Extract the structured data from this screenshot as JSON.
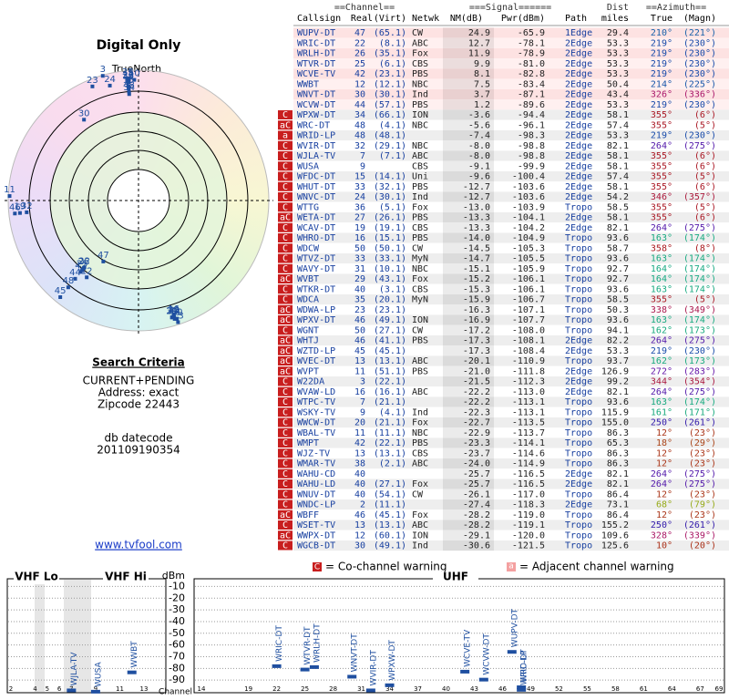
{
  "left": {
    "title": "Digital Only",
    "north": "TrueNorth",
    "criteria_title": "Search Criteria",
    "criteria": [
      "CURRENT+PENDING",
      "Address: exact",
      "Zipcode 22443"
    ],
    "datecode_label": "db datecode",
    "datecode": "201109190354",
    "link": "www.tvfool.com"
  },
  "polar": {
    "rlim": [
      80,
      -22
    ]
  },
  "table": {
    "group_headers": [
      "==Channel==",
      "===Signal======",
      "Dist",
      "==Azimuth=="
    ],
    "columns": [
      "Callsign",
      "Real",
      "(Virt)",
      "Netwk",
      "NM(dB)",
      "Pwr(dBm)",
      "Path",
      "miles",
      "True",
      "(Magn)"
    ],
    "rows": [
      {
        "callsign": "WUPV-DT",
        "real": 47,
        "virt": "(65.1)",
        "netwk": "CW",
        "nm": "24.9",
        "pwr": "-65.9",
        "path": "1Edge",
        "dist": "29.4",
        "true": "210°",
        "magn": "(221°)"
      },
      {
        "callsign": "WRIC-DT",
        "real": 22,
        "virt": "(8.1)",
        "netwk": "ABC",
        "nm": "12.7",
        "pwr": "-78.1",
        "path": "2Edge",
        "dist": "53.3",
        "true": "219°",
        "magn": "(230°)"
      },
      {
        "callsign": "WRLH-DT",
        "real": 26,
        "virt": "(35.1)",
        "netwk": "Fox",
        "nm": "11.9",
        "pwr": "-78.9",
        "path": "2Edge",
        "dist": "53.3",
        "true": "219°",
        "magn": "(230°)"
      },
      {
        "callsign": "WTVR-DT",
        "real": 25,
        "virt": "(6.1)",
        "netwk": "CBS",
        "nm": "9.9",
        "pwr": "-81.0",
        "path": "2Edge",
        "dist": "53.3",
        "true": "219°",
        "magn": "(230°)"
      },
      {
        "callsign": "WCVE-TV",
        "real": 42,
        "virt": "(23.1)",
        "netwk": "PBS",
        "nm": "8.1",
        "pwr": "-82.8",
        "path": "2Edge",
        "dist": "53.3",
        "true": "219°",
        "magn": "(230°)"
      },
      {
        "callsign": "WWBT",
        "real": 12,
        "virt": "(12.1)",
        "netwk": "NBC",
        "nm": "7.5",
        "pwr": "-83.4",
        "path": "2Edge",
        "dist": "50.4",
        "true": "214°",
        "magn": "(225°)"
      },
      {
        "callsign": "WNVT-DT",
        "real": 30,
        "virt": "(30.1)",
        "netwk": "Ind",
        "nm": "3.7",
        "pwr": "-87.1",
        "path": "2Edge",
        "dist": "43.4",
        "true": "326°",
        "magn": "(336°)"
      },
      {
        "callsign": "WCVW-DT",
        "real": 44,
        "virt": "(57.1)",
        "netwk": "PBS",
        "nm": "1.2",
        "pwr": "-89.6",
        "path": "2Edge",
        "dist": "53.3",
        "true": "219°",
        "magn": "(230°)"
      },
      {
        "warn": "C",
        "callsign": "WPXW-DT",
        "real": 34,
        "virt": "(66.1)",
        "netwk": "ION",
        "nm": "-3.6",
        "pwr": "-94.4",
        "path": "2Edge",
        "dist": "58.1",
        "true": "355°",
        "magn": "(6°)"
      },
      {
        "warn": "aC",
        "callsign": "WRC-DT",
        "real": 48,
        "virt": "(4.1)",
        "netwk": "NBC",
        "nm": "-5.6",
        "pwr": "-96.1",
        "path": "2Edge",
        "dist": "57.4",
        "true": "355°",
        "magn": "(5°)"
      },
      {
        "warn": "a",
        "callsign": "WRID-LP",
        "real": 48,
        "virt": "(48.1)",
        "nm": "-7.4",
        "pwr": "-98.3",
        "path": "2Edge",
        "dist": "53.3",
        "true": "219°",
        "magn": "(230°)"
      },
      {
        "warn": "C",
        "callsign": "WVIR-DT",
        "real": 32,
        "virt": "(29.1)",
        "netwk": "NBC",
        "nm": "-8.0",
        "pwr": "-98.8",
        "path": "2Edge",
        "dist": "82.1",
        "true": "264°",
        "magn": "(275°)"
      },
      {
        "warn": "C",
        "callsign": "WJLA-TV",
        "real": 7,
        "virt": "(7.1)",
        "netwk": "ABC",
        "nm": "-8.0",
        "pwr": "-98.8",
        "path": "2Edge",
        "dist": "58.1",
        "true": "355°",
        "magn": "(6°)"
      },
      {
        "warn": "C",
        "callsign": "WUSA",
        "real": 9,
        "netwk": "CBS",
        "nm": "-9.1",
        "pwr": "-99.9",
        "path": "2Edge",
        "dist": "58.1",
        "true": "355°",
        "magn": "(6°)"
      },
      {
        "warn": "C",
        "callsign": "WFDC-DT",
        "real": 15,
        "virt": "(14.1)",
        "netwk": "Uni",
        "nm": "-9.6",
        "pwr": "-100.4",
        "path": "2Edge",
        "dist": "57.4",
        "true": "355°",
        "magn": "(5°)"
      },
      {
        "warn": "C",
        "callsign": "WHUT-DT",
        "real": 33,
        "virt": "(32.1)",
        "netwk": "PBS",
        "nm": "-12.7",
        "pwr": "-103.6",
        "path": "2Edge",
        "dist": "58.1",
        "true": "355°",
        "magn": "(6°)"
      },
      {
        "warn": "C",
        "callsign": "WNVC-DT",
        "real": 24,
        "virt": "(30.1)",
        "netwk": "Ind",
        "nm": "-12.7",
        "pwr": "-103.6",
        "path": "2Edge",
        "dist": "54.2",
        "true": "346°",
        "magn": "(357°)"
      },
      {
        "warn": "C",
        "callsign": "WTTG",
        "real": 36,
        "virt": "(5.1)",
        "netwk": "Fox",
        "nm": "-13.0",
        "pwr": "-103.9",
        "path": "Tropo",
        "dist": "58.5",
        "true": "355°",
        "magn": "(5°)"
      },
      {
        "warn": "aC",
        "callsign": "WETA-DT",
        "real": 27,
        "virt": "(26.1)",
        "netwk": "PBS",
        "nm": "-13.3",
        "pwr": "-104.1",
        "path": "2Edge",
        "dist": "58.1",
        "true": "355°",
        "magn": "(6°)"
      },
      {
        "warn": "C",
        "callsign": "WCAV-DT",
        "real": 19,
        "virt": "(19.1)",
        "netwk": "CBS",
        "nm": "-13.3",
        "pwr": "-104.2",
        "path": "2Edge",
        "dist": "82.1",
        "true": "264°",
        "magn": "(275°)"
      },
      {
        "warn": "C",
        "callsign": "WHRO-DT",
        "real": 16,
        "virt": "(15.1)",
        "netwk": "PBS",
        "nm": "-14.0",
        "pwr": "-104.9",
        "path": "Tropo",
        "dist": "93.6",
        "true": "163°",
        "magn": "(174°)"
      },
      {
        "warn": "C",
        "callsign": "WDCW",
        "real": 50,
        "virt": "(50.1)",
        "netwk": "CW",
        "nm": "-14.5",
        "pwr": "-105.3",
        "path": "Tropo",
        "dist": "58.7",
        "true": "358°",
        "magn": "(8°)"
      },
      {
        "warn": "C",
        "callsign": "WTVZ-DT",
        "real": 33,
        "virt": "(33.1)",
        "netwk": "MyN",
        "nm": "-14.7",
        "pwr": "-105.5",
        "path": "Tropo",
        "dist": "93.6",
        "true": "163°",
        "magn": "(174°)"
      },
      {
        "warn": "C",
        "callsign": "WAVY-DT",
        "real": 31,
        "virt": "(10.1)",
        "netwk": "NBC",
        "nm": "-15.1",
        "pwr": "-105.9",
        "path": "Tropo",
        "dist": "92.7",
        "true": "164°",
        "magn": "(174°)"
      },
      {
        "warn": "aC",
        "callsign": "WVBT",
        "real": 29,
        "virt": "(43.1)",
        "netwk": "Fox",
        "nm": "-15.2",
        "pwr": "-106.1",
        "path": "Tropo",
        "dist": "92.7",
        "true": "164°",
        "magn": "(174°)"
      },
      {
        "warn": "C",
        "callsign": "WTKR-DT",
        "real": 40,
        "virt": "(3.1)",
        "netwk": "CBS",
        "nm": "-15.3",
        "pwr": "-106.1",
        "path": "Tropo",
        "dist": "93.6",
        "true": "163°",
        "magn": "(174°)"
      },
      {
        "warn": "C",
        "callsign": "WDCA",
        "real": 35,
        "virt": "(20.1)",
        "netwk": "MyN",
        "nm": "-15.9",
        "pwr": "-106.7",
        "path": "Tropo",
        "dist": "58.5",
        "true": "355°",
        "magn": "(5°)"
      },
      {
        "warn": "aC",
        "callsign": "WDWA-LP",
        "real": 23,
        "virt": "(23.1)",
        "nm": "-16.3",
        "pwr": "-107.1",
        "path": "Tropo",
        "dist": "50.3",
        "true": "338°",
        "magn": "(349°)"
      },
      {
        "warn": "aC",
        "callsign": "WPXV-DT",
        "real": 46,
        "virt": "(49.1)",
        "netwk": "ION",
        "nm": "-16.9",
        "pwr": "-107.7",
        "path": "Tropo",
        "dist": "93.6",
        "true": "163°",
        "magn": "(174°)"
      },
      {
        "warn": "C",
        "callsign": "WGNT",
        "real": 50,
        "virt": "(27.1)",
        "netwk": "CW",
        "nm": "-17.2",
        "pwr": "-108.0",
        "path": "Tropo",
        "dist": "94.1",
        "true": "162°",
        "magn": "(173°)"
      },
      {
        "warn": "aC",
        "callsign": "WHTJ",
        "real": 46,
        "virt": "(41.1)",
        "netwk": "PBS",
        "nm": "-17.3",
        "pwr": "-108.1",
        "path": "2Edge",
        "dist": "82.2",
        "true": "264°",
        "magn": "(275°)"
      },
      {
        "warn": "aC",
        "callsign": "WZTD-LP",
        "real": 45,
        "virt": "(45.1)",
        "nm": "-17.3",
        "pwr": "-108.4",
        "path": "2Edge",
        "dist": "53.3",
        "true": "219°",
        "magn": "(230°)"
      },
      {
        "warn": "aC",
        "callsign": "WVEC-DT",
        "real": 13,
        "virt": "(13.1)",
        "netwk": "ABC",
        "nm": "-20.1",
        "pwr": "-110.9",
        "path": "Tropo",
        "dist": "93.7",
        "true": "162°",
        "magn": "(173°)"
      },
      {
        "warn": "aC",
        "callsign": "WVPT",
        "real": 11,
        "virt": "(51.1)",
        "netwk": "PBS",
        "nm": "-21.0",
        "pwr": "-111.8",
        "path": "2Edge",
        "dist": "126.9",
        "true": "272°",
        "magn": "(283°)"
      },
      {
        "warn": "C",
        "callsign": "W22DA",
        "real": 3,
        "virt": "(22.1)",
        "nm": "-21.5",
        "pwr": "-112.3",
        "path": "2Edge",
        "dist": "99.2",
        "true": "344°",
        "magn": "(354°)"
      },
      {
        "warn": "C",
        "callsign": "WVAW-LD",
        "real": 16,
        "virt": "(16.1)",
        "netwk": "ABC",
        "nm": "-22.2",
        "pwr": "-113.0",
        "path": "2Edge",
        "dist": "82.1",
        "true": "264°",
        "magn": "(275°)"
      },
      {
        "warn": "C",
        "callsign": "WTPC-TV",
        "real": 7,
        "virt": "(21.1)",
        "nm": "-22.2",
        "pwr": "-113.1",
        "path": "Tropo",
        "dist": "93.6",
        "true": "163°",
        "magn": "(174°)"
      },
      {
        "warn": "C",
        "callsign": "WSKY-TV",
        "real": 9,
        "virt": "(4.1)",
        "netwk": "Ind",
        "nm": "-22.3",
        "pwr": "-113.1",
        "path": "Tropo",
        "dist": "115.9",
        "true": "161°",
        "magn": "(171°)"
      },
      {
        "warn": "C",
        "callsign": "WWCW-DT",
        "real": 20,
        "virt": "(21.1)",
        "netwk": "Fox",
        "nm": "-22.7",
        "pwr": "-113.5",
        "path": "Tropo",
        "dist": "155.0",
        "true": "250°",
        "magn": "(261°)"
      },
      {
        "warn": "C",
        "callsign": "WBAL-TV",
        "real": 11,
        "virt": "(11.1)",
        "netwk": "NBC",
        "nm": "-22.9",
        "pwr": "-113.7",
        "path": "Tropo",
        "dist": "86.3",
        "true": "12°",
        "magn": "(23°)"
      },
      {
        "warn": "C",
        "callsign": "WMPT",
        "real": 42,
        "virt": "(22.1)",
        "netwk": "PBS",
        "nm": "-23.3",
        "pwr": "-114.1",
        "path": "Tropo",
        "dist": "65.3",
        "true": "18°",
        "magn": "(29°)"
      },
      {
        "warn": "C",
        "callsign": "WJZ-TV",
        "real": 13,
        "virt": "(13.1)",
        "netwk": "CBS",
        "nm": "-23.7",
        "pwr": "-114.6",
        "path": "Tropo",
        "dist": "86.3",
        "true": "12°",
        "magn": "(23°)"
      },
      {
        "warn": "C",
        "callsign": "WMAR-TV",
        "real": 38,
        "virt": "(2.1)",
        "netwk": "ABC",
        "nm": "-24.0",
        "pwr": "-114.9",
        "path": "Tropo",
        "dist": "86.3",
        "true": "12°",
        "magn": "(23°)"
      },
      {
        "warn": "C",
        "callsign": "WAHU-CD",
        "real": 40,
        "nm": "-25.7",
        "pwr": "-116.5",
        "path": "2Edge",
        "dist": "82.1",
        "true": "264°",
        "magn": "(275°)"
      },
      {
        "warn": "C",
        "callsign": "WAHU-LD",
        "real": 40,
        "virt": "(27.1)",
        "netwk": "Fox",
        "nm": "-25.7",
        "pwr": "-116.5",
        "path": "2Edge",
        "dist": "82.1",
        "true": "264°",
        "magn": "(275°)"
      },
      {
        "warn": "C",
        "callsign": "WNUV-DT",
        "real": 40,
        "virt": "(54.1)",
        "netwk": "CW",
        "nm": "-26.1",
        "pwr": "-117.0",
        "path": "Tropo",
        "dist": "86.4",
        "true": "12°",
        "magn": "(23°)"
      },
      {
        "warn": "C",
        "callsign": "WNDC-LP",
        "real": 2,
        "virt": "(11.1)",
        "nm": "-27.4",
        "pwr": "-118.3",
        "path": "2Edge",
        "dist": "73.1",
        "true": "68°",
        "magn": "(79°)"
      },
      {
        "warn": "aC",
        "callsign": "WBFF",
        "real": 46,
        "virt": "(45.1)",
        "netwk": "Fox",
        "nm": "-28.2",
        "pwr": "-119.0",
        "path": "Tropo",
        "dist": "86.4",
        "true": "12°",
        "magn": "(23°)"
      },
      {
        "warn": "C",
        "callsign": "WSET-TV",
        "real": 13,
        "virt": "(13.1)",
        "netwk": "ABC",
        "nm": "-28.2",
        "pwr": "-119.1",
        "path": "Tropo",
        "dist": "155.2",
        "true": "250°",
        "magn": "(261°)"
      },
      {
        "warn": "aC",
        "callsign": "WWPX-DT",
        "real": 12,
        "virt": "(60.1)",
        "netwk": "ION",
        "nm": "-29.1",
        "pwr": "-120.0",
        "path": "Tropo",
        "dist": "109.6",
        "true": "328°",
        "magn": "(339°)"
      },
      {
        "warn": "C",
        "callsign": "WGCB-DT",
        "real": 30,
        "virt": "(49.1)",
        "netwk": "Ind",
        "nm": "-30.6",
        "pwr": "-121.5",
        "path": "Tropo",
        "dist": "125.6",
        "true": "10°",
        "magn": "(20°)"
      }
    ]
  },
  "legend": {
    "co": {
      "icon": "C",
      "text": "= Co-channel warning"
    },
    "adj": {
      "icon": "a",
      "text": "= Adjacent channel warning"
    }
  },
  "spectrum": {
    "dbm_label": "dBm",
    "channel_label": "Channel",
    "ylim": [
      -100,
      -5
    ],
    "yticks": [
      -10,
      -20,
      -30,
      -40,
      -50,
      -60,
      -70,
      -80,
      -90
    ],
    "vhf": {
      "labels": [
        "VHF Lo",
        "VHF Hi"
      ],
      "xlim": [
        2,
        13
      ],
      "xticks": [
        2,
        4,
        5,
        6,
        7,
        9,
        11,
        13
      ]
    },
    "uhf": {
      "label": "UHF",
      "xlim": [
        14,
        69
      ],
      "xticks": [
        14,
        19,
        22,
        25,
        28,
        31,
        34,
        37,
        40,
        43,
        46,
        49,
        52,
        55,
        58,
        61,
        64,
        67,
        69
      ]
    }
  }
}
